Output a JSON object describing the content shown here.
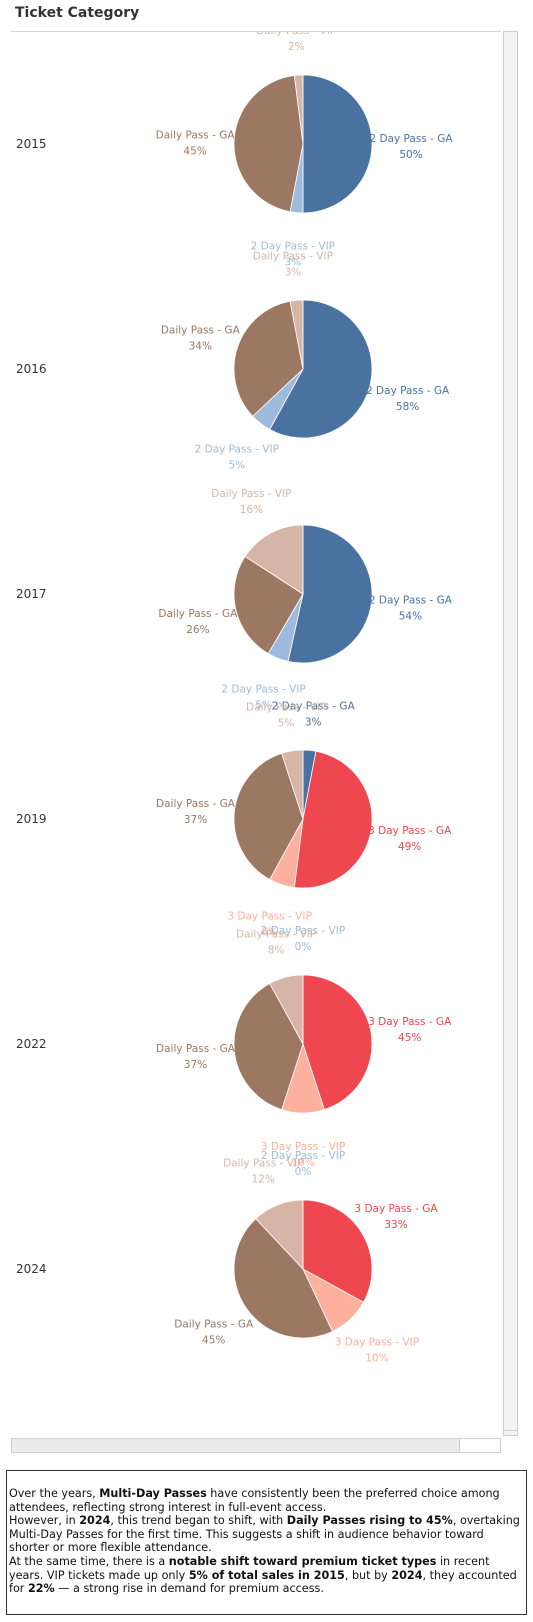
{
  "header": {
    "title": "Ticket Category"
  },
  "colors": {
    "2 Day Pass - GA": "#4a72a1",
    "2 Day Pass - VIP": "#9ebbdd",
    "3 Day Pass - GA": "#ef4750",
    "3 Day Pass - VIP": "#fdb09d",
    "Daily Pass - GA": "#9c7761",
    "Daily Pass - VIP": "#d6b5a7"
  },
  "chart_data": {
    "type": "pie",
    "title": "Ticket Category",
    "rows": [
      {
        "year": "2015",
        "slices": [
          {
            "label": "2 Day Pass - GA",
            "value": 50,
            "value_label": "50%"
          },
          {
            "label": "2 Day Pass - VIP",
            "value": 3,
            "value_label": "3%"
          },
          {
            "label": "Daily Pass - GA",
            "value": 45,
            "value_label": "45%"
          },
          {
            "label": "Daily Pass - VIP",
            "value": 2,
            "value_label": "2%"
          }
        ]
      },
      {
        "year": "2016",
        "slices": [
          {
            "label": "2 Day Pass - GA",
            "value": 58,
            "value_label": "58%"
          },
          {
            "label": "2 Day Pass - VIP",
            "value": 5,
            "value_label": "5%"
          },
          {
            "label": "Daily Pass - GA",
            "value": 34,
            "value_label": "34%"
          },
          {
            "label": "Daily Pass - VIP",
            "value": 3,
            "value_label": "3%"
          }
        ]
      },
      {
        "year": "2017",
        "slices": [
          {
            "label": "2 Day Pass - GA",
            "value": 54,
            "value_label": "54%"
          },
          {
            "label": "2 Day Pass - VIP",
            "value": 5,
            "value_label": "5%"
          },
          {
            "label": "Daily Pass - GA",
            "value": 26,
            "value_label": "26%"
          },
          {
            "label": "Daily Pass - VIP",
            "value": 16,
            "value_label": "16%"
          }
        ]
      },
      {
        "year": "2019",
        "slices": [
          {
            "label": "2 Day Pass - GA",
            "value": 3,
            "value_label": "3%"
          },
          {
            "label": "3 Day Pass - GA",
            "value": 49,
            "value_label": "49%"
          },
          {
            "label": "3 Day Pass - VIP",
            "value": 6,
            "value_label": "6%"
          },
          {
            "label": "Daily Pass - GA",
            "value": 37,
            "value_label": "37%"
          },
          {
            "label": "Daily Pass - VIP",
            "value": 5,
            "value_label": "5%"
          }
        ]
      },
      {
        "year": "2022",
        "slices": [
          {
            "label": "2 Day Pass - VIP",
            "value": 0,
            "value_label": "0%"
          },
          {
            "label": "3 Day Pass - GA",
            "value": 45,
            "value_label": "45%"
          },
          {
            "label": "3 Day Pass - VIP",
            "value": 10,
            "value_label": "10%"
          },
          {
            "label": "Daily Pass - GA",
            "value": 37,
            "value_label": "37%"
          },
          {
            "label": "Daily Pass - VIP",
            "value": 8,
            "value_label": "8%"
          }
        ]
      },
      {
        "year": "2024",
        "slices": [
          {
            "label": "2 Day Pass - VIP",
            "value": 0,
            "value_label": "0%"
          },
          {
            "label": "3 Day Pass - GA",
            "value": 33,
            "value_label": "33%"
          },
          {
            "label": "3 Day Pass - VIP",
            "value": 10,
            "value_label": "10%"
          },
          {
            "label": "Daily Pass - GA",
            "value": 45,
            "value_label": "45%"
          },
          {
            "label": "Daily Pass - VIP",
            "value": 12,
            "value_label": "12%"
          }
        ]
      }
    ]
  },
  "note": {
    "p1": [
      {
        "text": "Over the years, "
      },
      {
        "text": "Multi-Day Passes",
        "bold": true
      },
      {
        "text": " have consistently been the preferred choice among attendees, reflecting strong interest in full-event access."
      }
    ],
    "p2": [
      {
        "text": "However, in "
      },
      {
        "text": "2024",
        "bold": true
      },
      {
        "text": ", this trend began to shift, with "
      },
      {
        "text": "Daily Passes rising to 45%",
        "bold": true
      },
      {
        "text": ", overtaking Multi-Day Passes for the first time. This suggests a shift in audience behavior toward shorter or more flexible attendance."
      }
    ],
    "p3": [
      {
        "text": "At the same time, there is a "
      },
      {
        "text": "notable shift toward premium ticket types",
        "bold": true
      },
      {
        "text": " in recent years. VIP tickets made up only "
      },
      {
        "text": "5% of total sales in 2015",
        "bold": true
      },
      {
        "text": ", but by "
      },
      {
        "text": "2024",
        "bold": true
      },
      {
        "text": ", they accounted for "
      },
      {
        "text": "22%",
        "bold": true
      },
      {
        "text": " — a strong rise in demand for premium access."
      }
    ]
  }
}
